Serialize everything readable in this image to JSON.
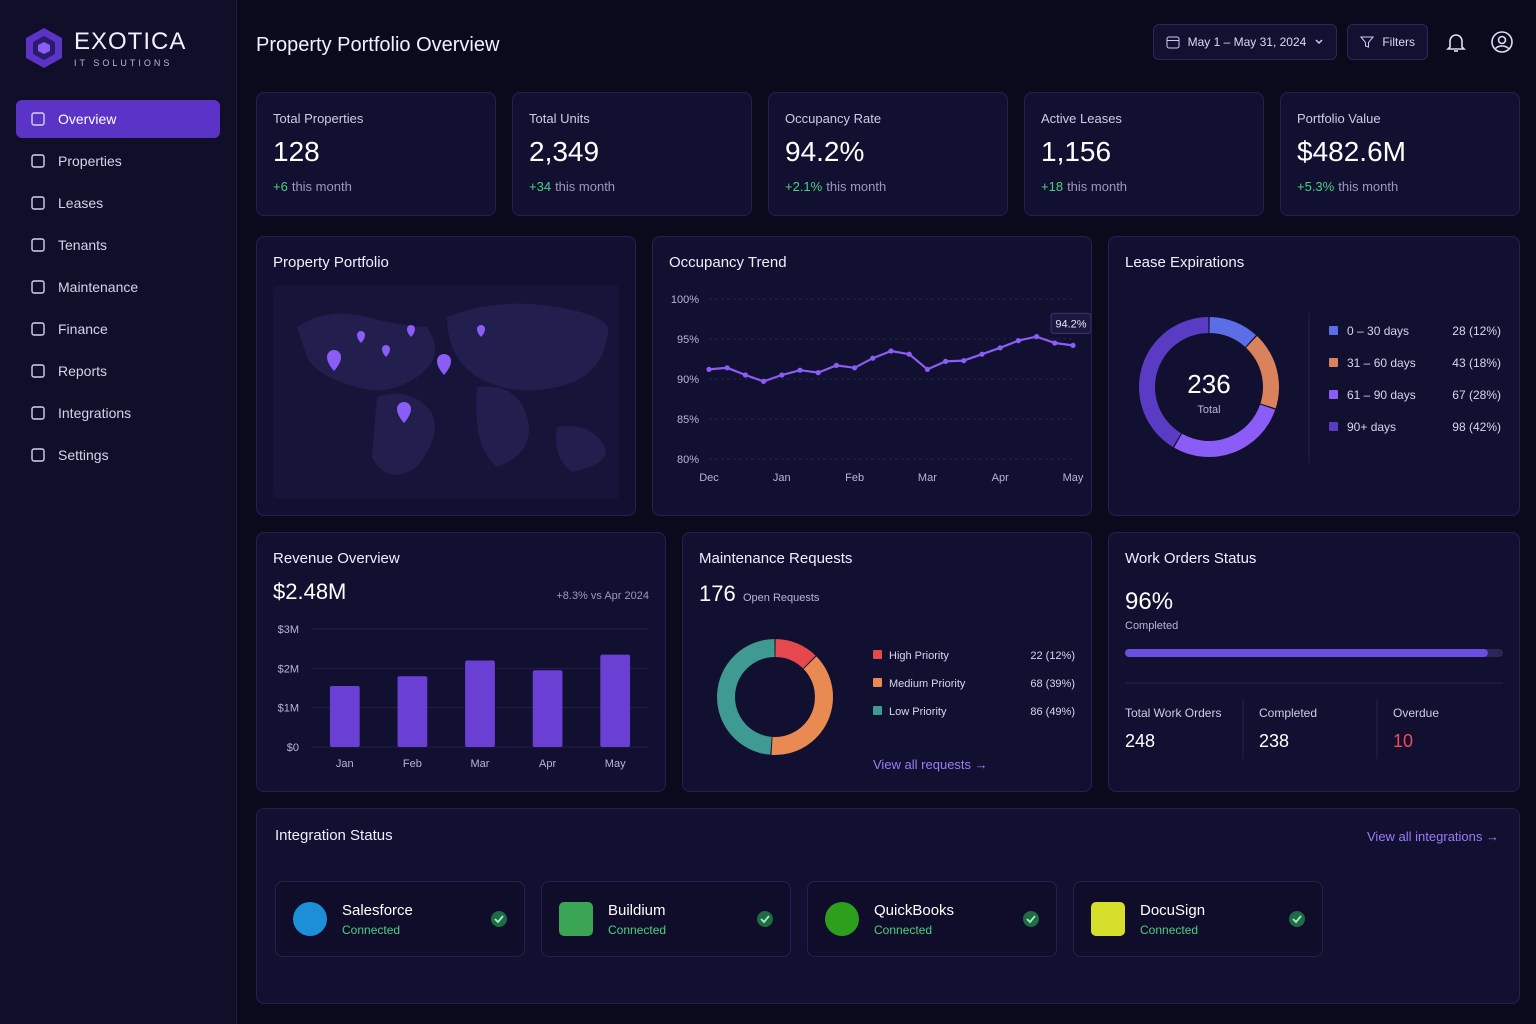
{
  "brand": {
    "name": "EXOTICA",
    "tagline": "IT SOLUTIONS"
  },
  "nav": [
    "Overview",
    "Properties",
    "Leases",
    "Tenants",
    "Maintenance",
    "Finance",
    "Reports",
    "Integrations",
    "Settings"
  ],
  "header": {
    "title": "Property Portfolio Overview",
    "date_range": "May 1 – May 31, 2024",
    "filters": "Filters"
  },
  "kpis": [
    {
      "label": "Total Properties",
      "value": "128",
      "change": "+6",
      "note": "this month"
    },
    {
      "label": "Total Units",
      "value": "2,349",
      "change": "+34",
      "note": "this month"
    },
    {
      "label": "Occupancy Rate",
      "value": "94.2%",
      "change": "+2.1%",
      "note": "this month"
    },
    {
      "label": "Active Leases",
      "value": "1,156",
      "change": "+18",
      "note": "this month"
    },
    {
      "label": "Portfolio Value",
      "value": "$482.6M",
      "change": "+5.3%",
      "note": "this month"
    }
  ],
  "property_portfolio": {
    "title": "Property Portfolio"
  },
  "occupancy_trend": {
    "type": "line",
    "title": "Occupancy Trend",
    "categories": [
      "Dec",
      null,
      null,
      null,
      "Jan",
      null,
      null,
      null,
      "Feb",
      null,
      null,
      null,
      "Mar",
      null,
      null,
      null,
      "Apr",
      null,
      null,
      null,
      "May"
    ],
    "values": [
      91.2,
      91.4,
      90.5,
      89.7,
      90.5,
      91.1,
      90.8,
      91.7,
      91.4,
      92.6,
      93.5,
      93.1,
      91.2,
      92.2,
      92.3,
      93.1,
      93.9,
      94.8,
      95.3,
      94.5,
      94.2
    ],
    "value_labels": [
      null,
      null,
      null,
      null,
      null,
      null,
      null,
      null,
      null,
      null,
      null,
      null,
      null,
      null,
      null,
      null,
      null,
      null,
      null,
      null,
      "94.2%"
    ],
    "color": "#8b5cf6",
    "ylim": [
      80,
      100
    ],
    "yticks": [
      {
        "value": 80,
        "label": "80%"
      },
      {
        "value": 85,
        "label": "85%"
      },
      {
        "value": 90,
        "label": "90%"
      },
      {
        "value": 95,
        "label": "95%"
      },
      {
        "value": 100,
        "label": "100%"
      }
    ],
    "grid": true
  },
  "lease_expirations": {
    "type": "donut",
    "title": "Lease Expirations",
    "total": 236,
    "total_label": "Total",
    "categories": [
      "0 – 30 days",
      "31 – 60 days",
      "61 – 90 days",
      "90+ days"
    ],
    "values": [
      28,
      43,
      67,
      98
    ],
    "value_labels": [
      "28 (12%)",
      "43 (18%)",
      "67 (28%)",
      "98 (42%)"
    ],
    "colors": [
      "#5b6ee8",
      "#d9825b",
      "#8b5cf6",
      "#5a3cc4"
    ]
  },
  "revenue_overview": {
    "type": "bar",
    "title": "Revenue Overview",
    "total": "$2.48M",
    "comparison": "+8.3% vs Apr 2024",
    "categories": [
      "Jan",
      "Feb",
      "Mar",
      "Apr",
      "May"
    ],
    "values": [
      1.55,
      1.8,
      2.2,
      1.95,
      2.35
    ],
    "color": "#6a3fd4",
    "ylim": [
      0,
      3
    ],
    "yticks": [
      {
        "value": 0,
        "label": "$0"
      },
      {
        "value": 1,
        "label": "$1M"
      },
      {
        "value": 2,
        "label": "$2M"
      },
      {
        "value": 3,
        "label": "$3M"
      }
    ]
  },
  "maintenance_requests": {
    "type": "donut",
    "title": "Maintenance Requests",
    "open_count": "176",
    "open_label": "Open Requests",
    "categories": [
      "High Priority",
      "Medium Priority",
      "Low Priority"
    ],
    "values": [
      22,
      68,
      86
    ],
    "value_labels": [
      "22 (12%)",
      "68 (39%)",
      "86 (49%)"
    ],
    "colors": [
      "#e5484d",
      "#e98a52",
      "#3f9a94"
    ],
    "link": "View all requests →"
  },
  "work_orders": {
    "title": "Work Orders Status",
    "completion": 96,
    "completion_label": "96%",
    "completion_note": "Completed",
    "xlim": [
      0,
      100
    ],
    "stats": [
      {
        "label": "Total Work Orders",
        "value": "248"
      },
      {
        "label": "Completed",
        "value": "238"
      },
      {
        "label": "Overdue",
        "value": "10"
      }
    ]
  },
  "integrations": {
    "title": "Integration Status",
    "items": [
      {
        "name": "Salesforce",
        "status": "Connected"
      },
      {
        "name": "Buildium",
        "status": "Connected"
      },
      {
        "name": "QuickBooks",
        "status": "Connected"
      },
      {
        "name": "DocuSign",
        "status": "Connected"
      }
    ],
    "link": "View all integrations →"
  }
}
